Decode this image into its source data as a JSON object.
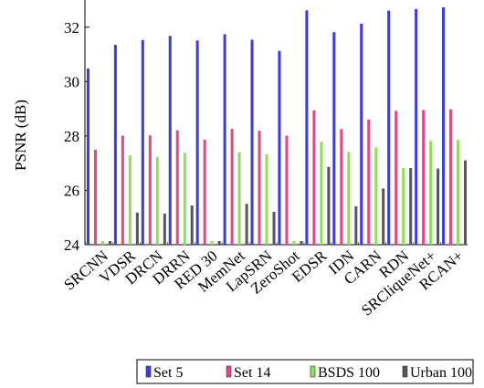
{
  "chart_data": {
    "type": "bar",
    "title": "",
    "xlabel": "",
    "ylabel": "PSNR (dB)",
    "ylim": [
      24,
      33
    ],
    "yticks": [
      24,
      26,
      28,
      30,
      32
    ],
    "grid": false,
    "legend_position": "bottom",
    "categories": [
      "SRCNN",
      "VDSR",
      "DRCN",
      "DRRN",
      "RED 30",
      "MemNet",
      "LapSRN",
      "ZeroShot",
      "EDSR",
      "IDN",
      "CARN",
      "RDN",
      "SRCliqueNet+",
      "RCAN+"
    ],
    "series": [
      {
        "name": "Set 5",
        "color": "#3a3ae6",
        "values": [
          30.48,
          31.35,
          31.53,
          31.68,
          31.51,
          31.74,
          31.54,
          31.13,
          32.62,
          31.82,
          32.13,
          32.61,
          32.67,
          32.73
        ]
      },
      {
        "name": "Set 14",
        "color": "#e8457a",
        "values": [
          27.49,
          28.01,
          28.02,
          28.21,
          27.86,
          28.26,
          28.19,
          28.01,
          28.94,
          28.25,
          28.6,
          28.92,
          28.95,
          28.98
        ]
      },
      {
        "name": "BSDS 100",
        "color": "#8ee05a",
        "values": [
          24.0,
          27.29,
          27.23,
          27.38,
          24.0,
          27.4,
          27.32,
          24.0,
          27.79,
          27.41,
          27.58,
          26.82,
          27.81,
          27.85
        ]
      },
      {
        "name": "Urban 100",
        "color": "#555555",
        "values": [
          24.0,
          25.18,
          25.14,
          25.44,
          24.0,
          25.5,
          25.21,
          24.0,
          26.86,
          25.41,
          26.07,
          26.82,
          26.8,
          27.1
        ]
      }
    ]
  }
}
